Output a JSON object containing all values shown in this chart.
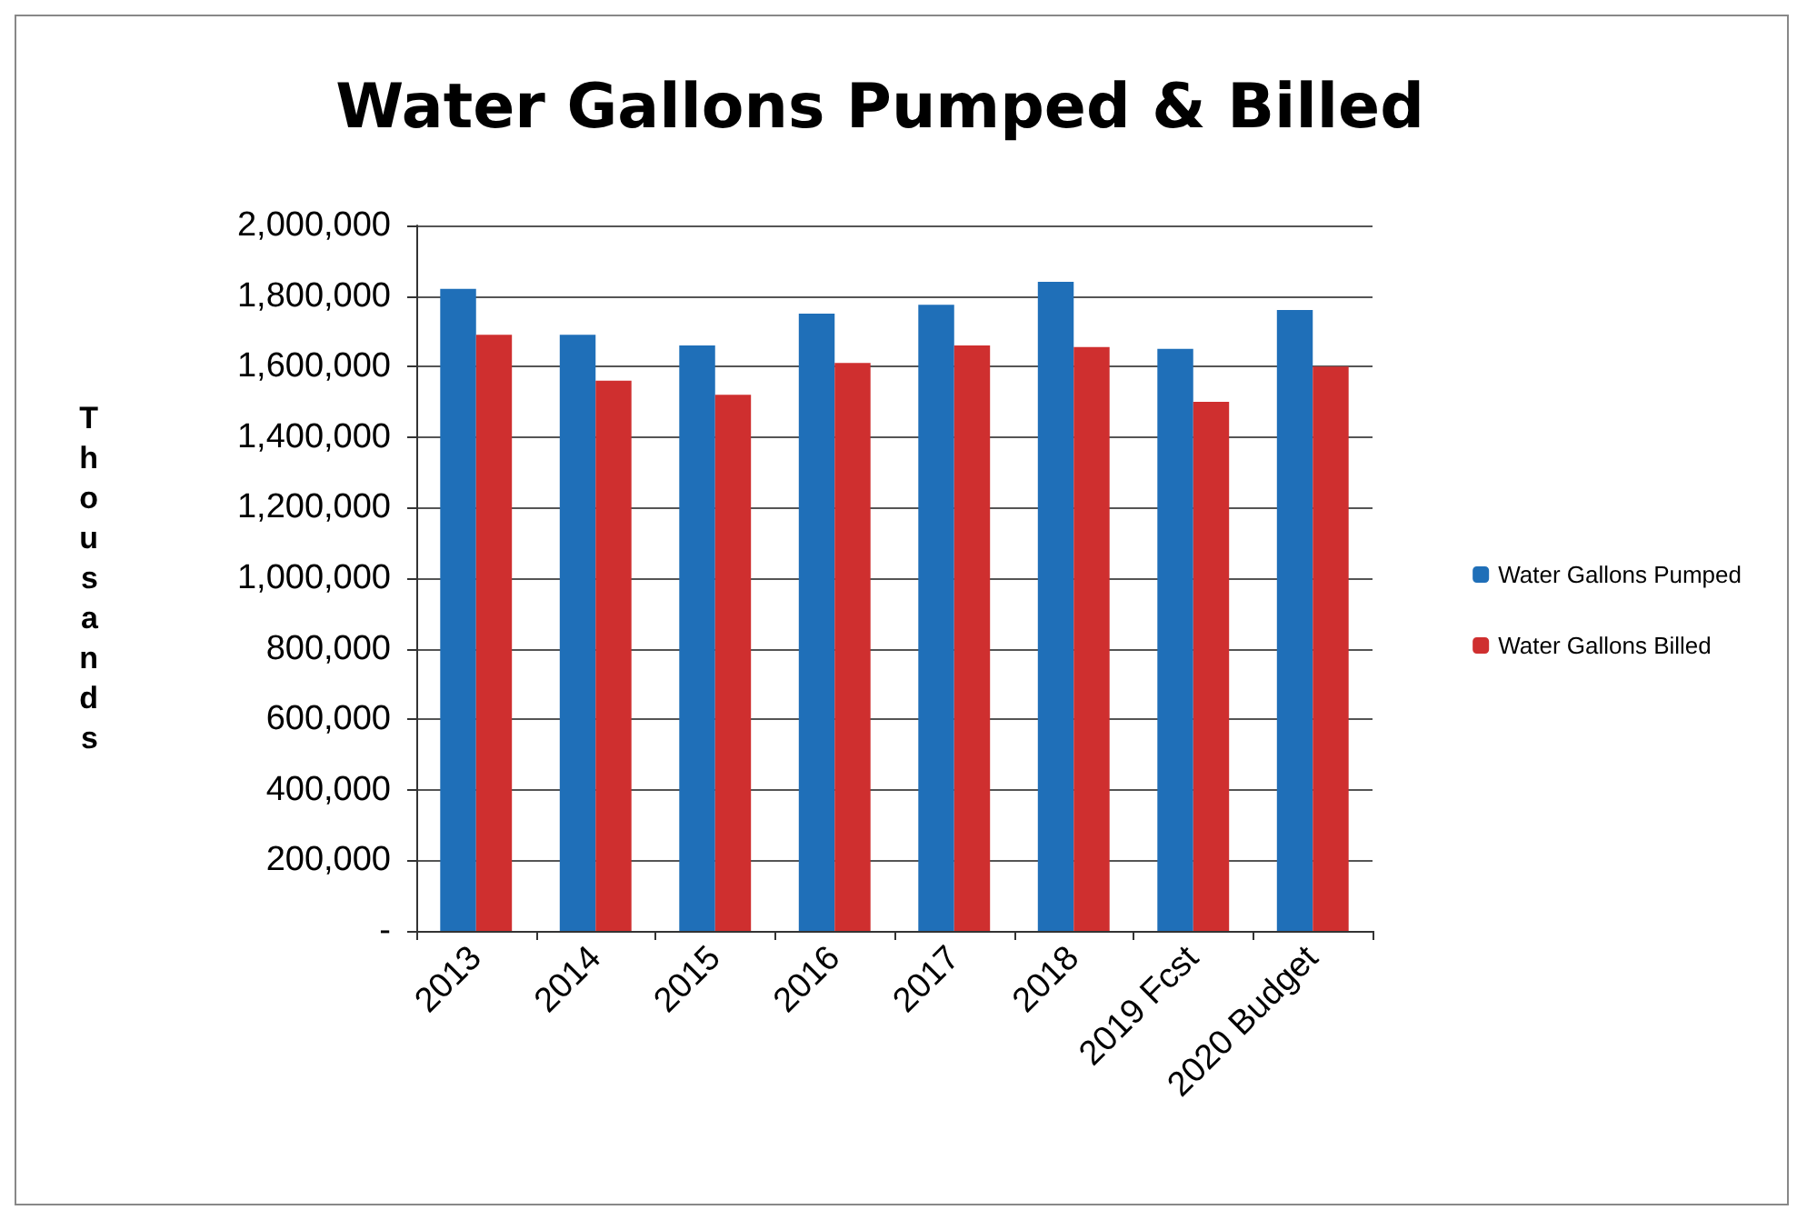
{
  "chart_data": {
    "type": "bar",
    "title": "Water Gallons Pumped & Billed",
    "ylabel": "Thousands",
    "categories": [
      "2013",
      "2014",
      "2015",
      "2016",
      "2017",
      "2018",
      "2019 Fcst",
      "2020 Budget"
    ],
    "series": [
      {
        "name": "Water Gallons Pumped",
        "color": "#1f6fb8",
        "values": [
          1820000,
          1690000,
          1660000,
          1750000,
          1775000,
          1840000,
          1650000,
          1760000
        ]
      },
      {
        "name": "Water Gallons Billed",
        "color": "#cf2f2f",
        "values": [
          1690000,
          1560000,
          1520000,
          1610000,
          1660000,
          1655000,
          1500000,
          1600000
        ]
      }
    ],
    "ylim": [
      0,
      2000000
    ],
    "yticks": [
      {
        "value": 0,
        "label": "-"
      },
      {
        "value": 200000,
        "label": "200,000"
      },
      {
        "value": 400000,
        "label": "400,000"
      },
      {
        "value": 600000,
        "label": "600,000"
      },
      {
        "value": 800000,
        "label": "800,000"
      },
      {
        "value": 1000000,
        "label": "1,000,000"
      },
      {
        "value": 1200000,
        "label": "1,200,000"
      },
      {
        "value": 1400000,
        "label": "1,400,000"
      },
      {
        "value": 1600000,
        "label": "1,600,000"
      },
      {
        "value": 1800000,
        "label": "1,800,000"
      },
      {
        "value": 2000000,
        "label": "2,000,000"
      }
    ],
    "grid": "y",
    "legend": "right"
  }
}
